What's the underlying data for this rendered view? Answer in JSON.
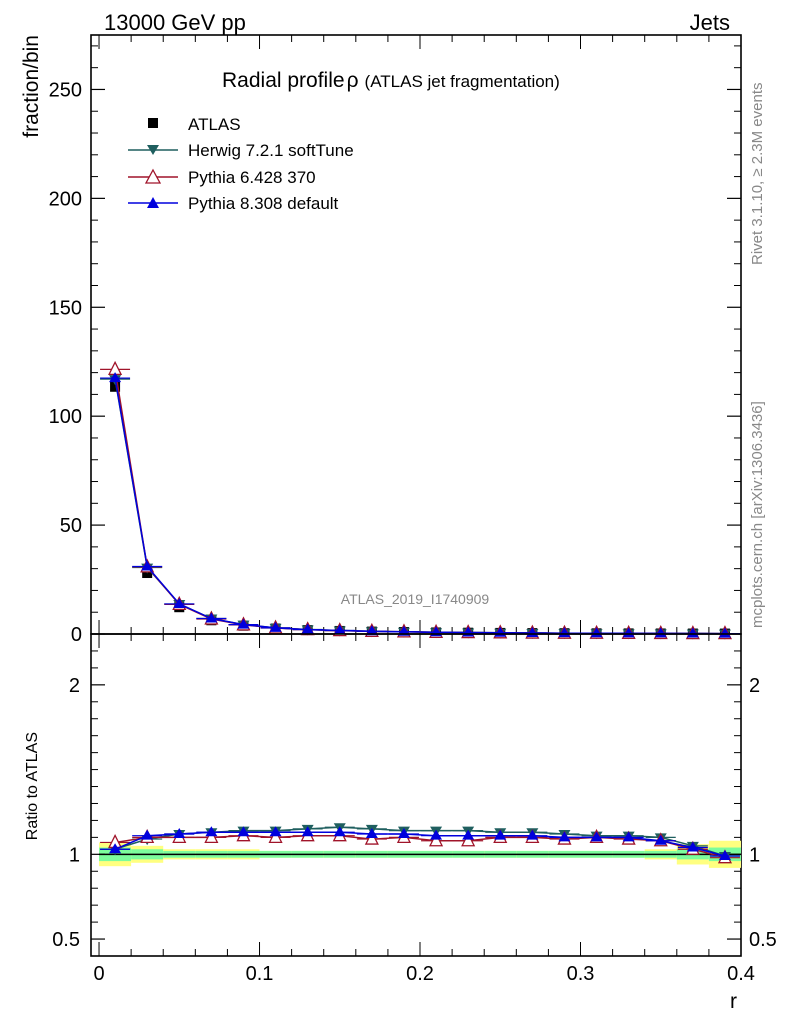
{
  "header": {
    "left": "13000 GeV pp",
    "right": "Jets"
  },
  "title": {
    "main": "Radial profile",
    "symbol": "ρ",
    "sub": "(ATLAS jet fragmentation)"
  },
  "side_text": {
    "rivet": "Rivet 3.1.10, ≥ 2.3M events",
    "mcplots": "mcplots.cern.ch [arXiv:1306.3436]"
  },
  "watermark": "ATLAS_2019_I1740909",
  "colors": {
    "data": "#000000",
    "herwig": "#1f5f5f",
    "pythia6": "#a0142a",
    "pythia8": "#0000dd",
    "band_inner": "#7cfc9c",
    "band_outer": "#ffff80"
  },
  "chart_data": [
    {
      "type": "line",
      "ylabel": "fraction/bin",
      "ylim": [
        0,
        275
      ],
      "xlim": [
        -0.005,
        0.4
      ],
      "yticks": [
        0,
        50,
        100,
        150,
        200,
        250
      ],
      "legend_placement": "top-left",
      "x": [
        0.01,
        0.03,
        0.05,
        0.07,
        0.09,
        0.11,
        0.13,
        0.15,
        0.17,
        0.19,
        0.21,
        0.23,
        0.25,
        0.27,
        0.29,
        0.31,
        0.33,
        0.35,
        0.37,
        0.39
      ],
      "series": [
        {
          "name": "ATLAS",
          "key": "data",
          "marker": "square",
          "values": [
            113.5,
            28,
            12.3,
            6.3,
            3.8,
            2.5,
            1.8,
            1.4,
            1.1,
            0.9,
            0.7,
            0.6,
            0.5,
            0.4,
            0.35,
            0.3,
            0.27,
            0.24,
            0.21,
            0.19
          ]
        },
        {
          "name": "Herwig 7.2.1 softTune",
          "key": "herwig",
          "marker": "triangle-down",
          "values": [
            117,
            30.5,
            13.8,
            7.1,
            4.3,
            2.8,
            2.05,
            1.6,
            1.25,
            1.02,
            0.79,
            0.68,
            0.56,
            0.45,
            0.39,
            0.33,
            0.3,
            0.26,
            0.22,
            0.19
          ]
        },
        {
          "name": "Pythia 6.428 370",
          "key": "pythia6",
          "marker": "triangle-open",
          "values": [
            121.5,
            30.8,
            13.6,
            6.9,
            4.2,
            2.75,
            2.0,
            1.55,
            1.2,
            0.99,
            0.76,
            0.65,
            0.55,
            0.44,
            0.38,
            0.33,
            0.29,
            0.26,
            0.21,
            0.19
          ]
        },
        {
          "name": "Pythia 8.308 default",
          "key": "pythia8",
          "marker": "triangle-up",
          "values": [
            117.5,
            31,
            13.8,
            7.1,
            4.3,
            2.8,
            2.04,
            1.59,
            1.24,
            1.01,
            0.78,
            0.67,
            0.56,
            0.45,
            0.39,
            0.33,
            0.3,
            0.26,
            0.21,
            0.19
          ]
        }
      ]
    },
    {
      "type": "line",
      "xlabel": "r",
      "ylabel": "Ratio to ATLAS",
      "ylim": [
        0.4,
        2.3
      ],
      "xlim": [
        -0.005,
        0.4
      ],
      "xticks": [
        0,
        0.1,
        0.2,
        0.3,
        0.4
      ],
      "xtick_labels": [
        "0",
        "0.1",
        "0.2",
        "0.3",
        "0.4"
      ],
      "yticks": [
        0.5,
        1,
        2
      ],
      "ytick_labels": [
        "0.5",
        "1",
        "2"
      ],
      "x": [
        0.01,
        0.03,
        0.05,
        0.07,
        0.09,
        0.11,
        0.13,
        0.15,
        0.17,
        0.19,
        0.21,
        0.23,
        0.25,
        0.27,
        0.29,
        0.31,
        0.33,
        0.35,
        0.37,
        0.39
      ],
      "band_inner": [
        0.04,
        0.03,
        0.02,
        0.02,
        0.02,
        0.02,
        0.02,
        0.02,
        0.02,
        0.02,
        0.02,
        0.02,
        0.02,
        0.02,
        0.02,
        0.02,
        0.02,
        0.02,
        0.03,
        0.04
      ],
      "band_outer": [
        0.07,
        0.05,
        0.03,
        0.03,
        0.03,
        0.02,
        0.02,
        0.02,
        0.02,
        0.02,
        0.02,
        0.02,
        0.02,
        0.02,
        0.02,
        0.02,
        0.02,
        0.03,
        0.06,
        0.08
      ],
      "series": [
        {
          "name": "Herwig 7.2.1 softTune",
          "key": "herwig",
          "marker": "triangle-down",
          "values": [
            1.03,
            1.09,
            1.12,
            1.13,
            1.14,
            1.14,
            1.15,
            1.16,
            1.15,
            1.14,
            1.14,
            1.14,
            1.13,
            1.13,
            1.12,
            1.11,
            1.11,
            1.1,
            1.05,
            0.99
          ]
        },
        {
          "name": "Pythia 6.428 370",
          "key": "pythia6",
          "marker": "triangle-open",
          "values": [
            1.07,
            1.1,
            1.1,
            1.1,
            1.11,
            1.1,
            1.11,
            1.11,
            1.09,
            1.1,
            1.08,
            1.08,
            1.1,
            1.1,
            1.09,
            1.1,
            1.09,
            1.08,
            1.03,
            0.98
          ]
        },
        {
          "name": "Pythia 8.308 default",
          "key": "pythia8",
          "marker": "triangle-up",
          "values": [
            1.03,
            1.11,
            1.12,
            1.13,
            1.13,
            1.13,
            1.13,
            1.13,
            1.12,
            1.12,
            1.11,
            1.11,
            1.11,
            1.11,
            1.1,
            1.1,
            1.1,
            1.08,
            1.04,
            0.99
          ]
        }
      ]
    }
  ]
}
